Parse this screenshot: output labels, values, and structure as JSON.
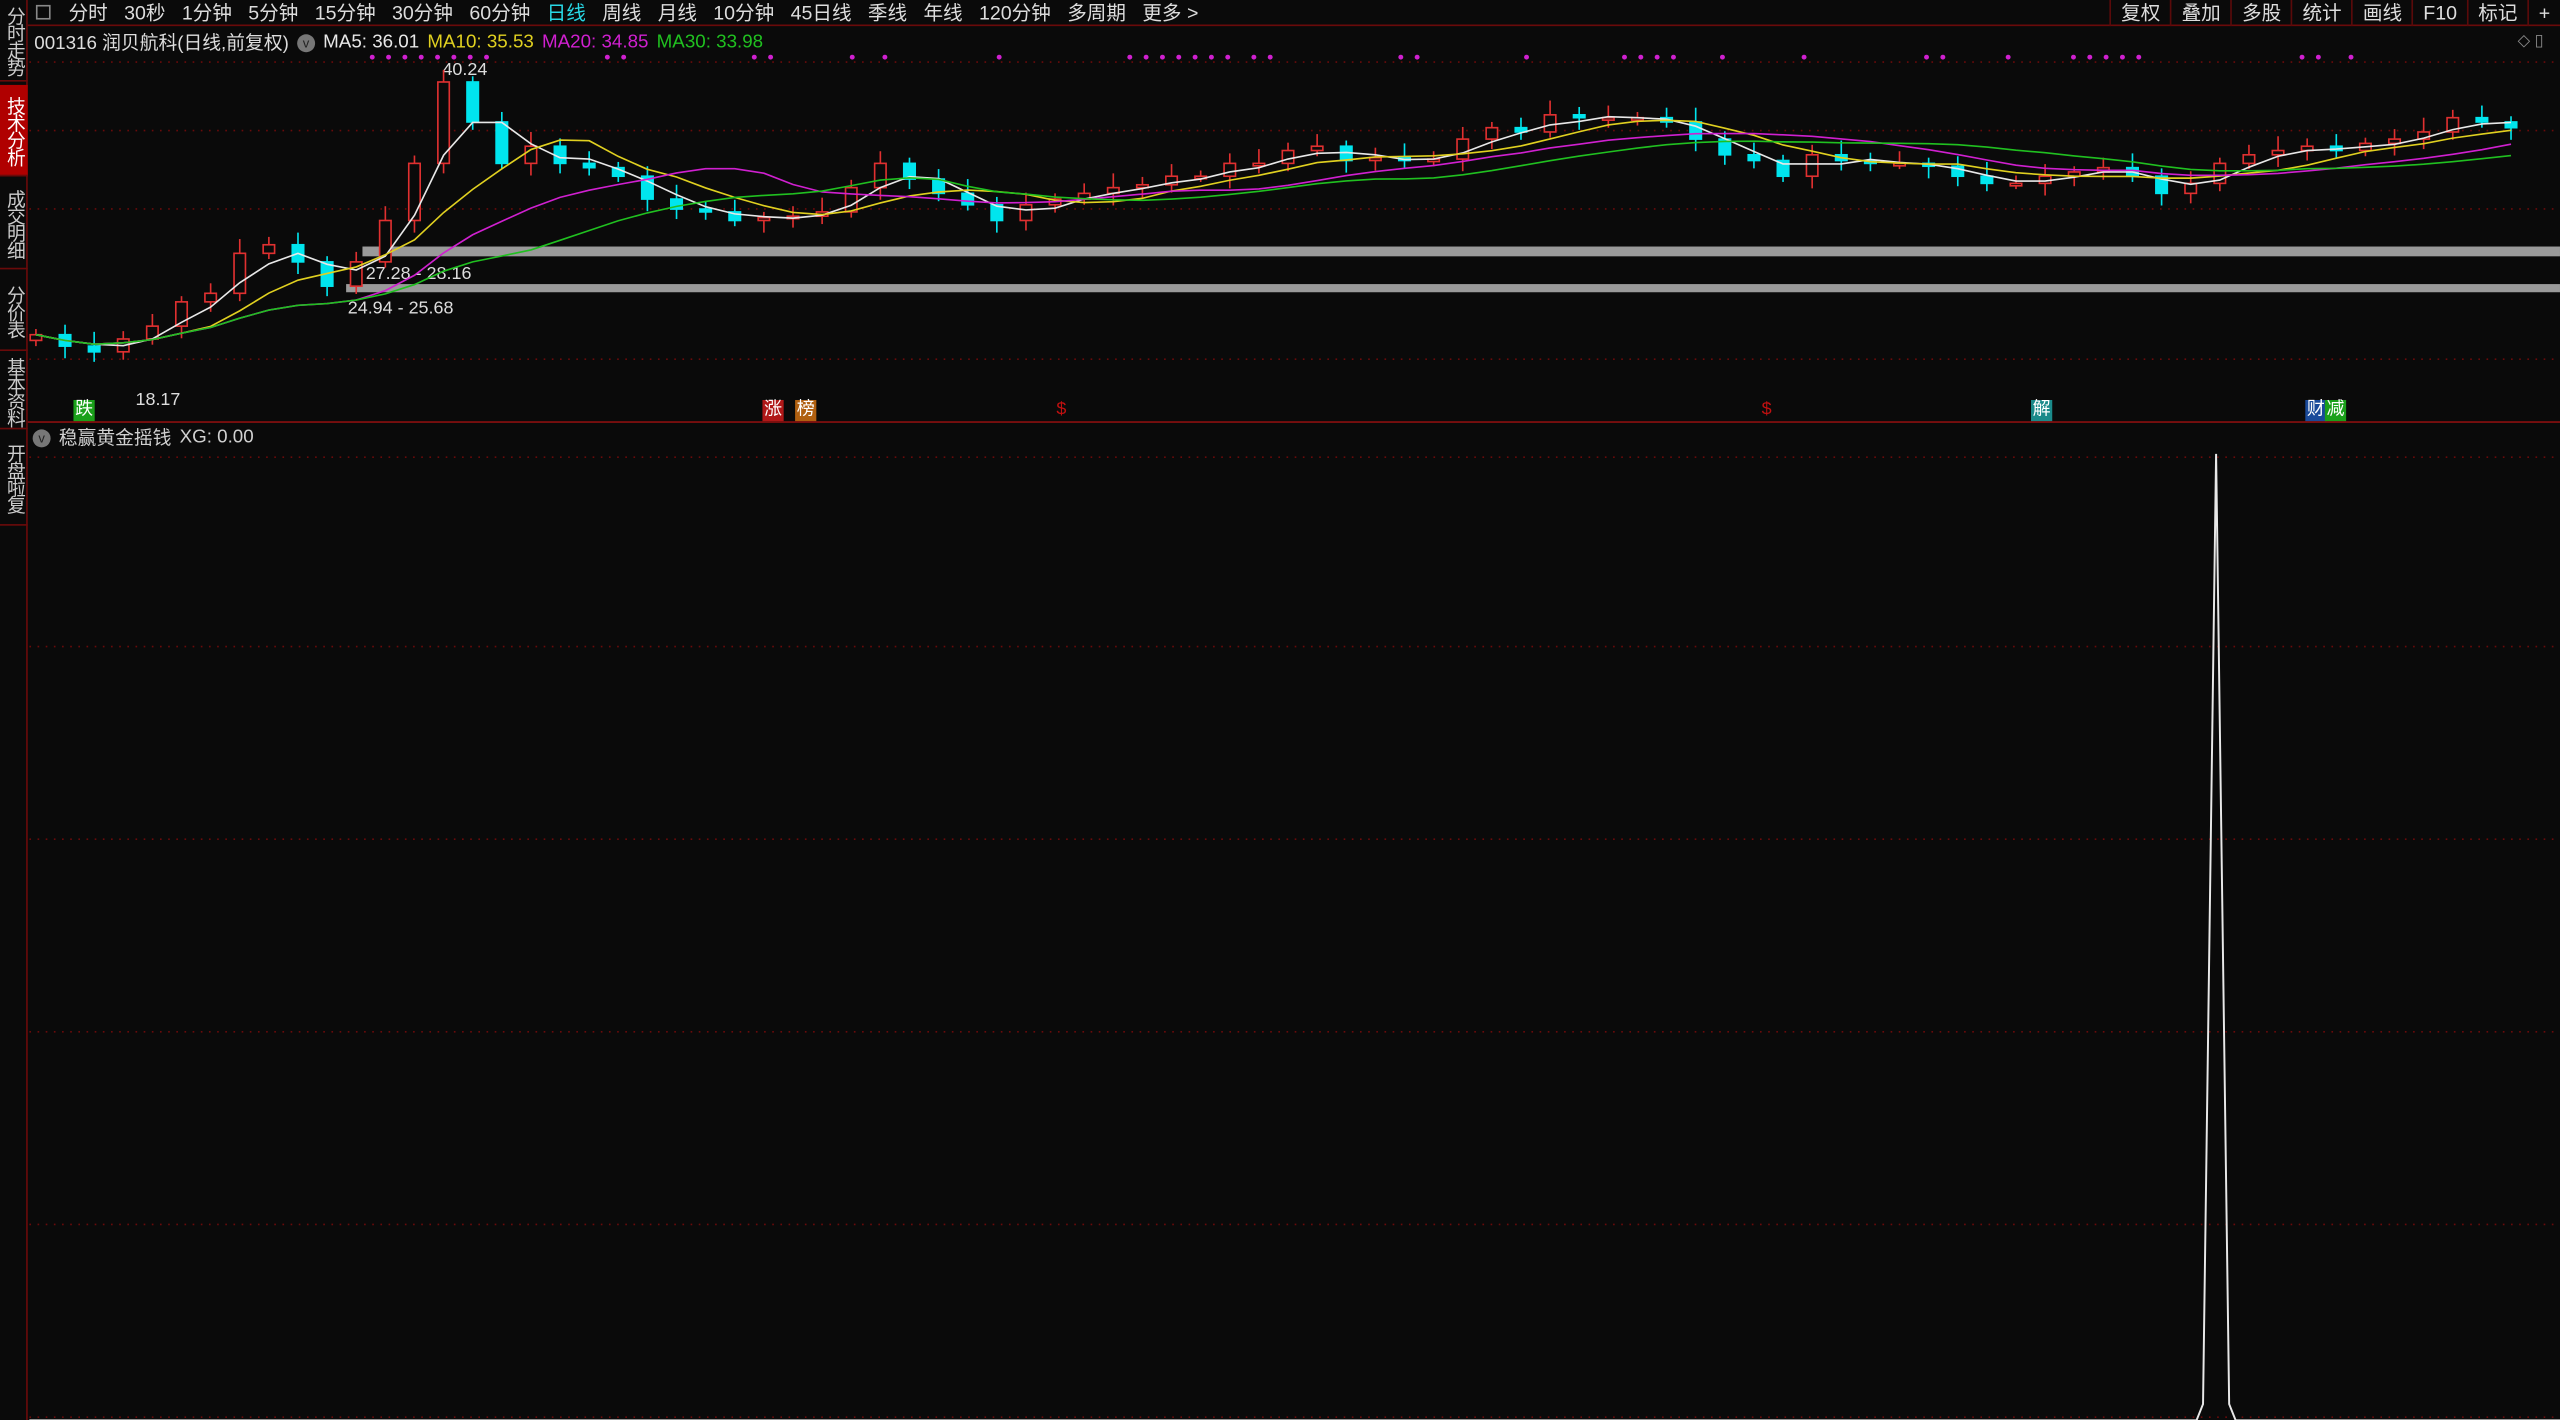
{
  "sidebar": {
    "tabs": [
      {
        "label": "分时走势",
        "active": false
      },
      {
        "label": "技术分析",
        "active": true
      },
      {
        "label": "成交明细",
        "active": false
      },
      {
        "label": "分价表",
        "active": false
      },
      {
        "label": "基本资料",
        "active": false
      },
      {
        "label": "开盘啦复",
        "active": false
      }
    ]
  },
  "toolbar": {
    "periods": [
      "分时",
      "30秒",
      "1分钟",
      "5分钟",
      "15分钟",
      "30分钟",
      "60分钟",
      "日线",
      "周线",
      "月线",
      "10分钟",
      "45日线",
      "季线",
      "年线",
      "120分钟",
      "多周期",
      "更多 >"
    ],
    "active_period": "日线",
    "right": [
      "复权",
      "叠加",
      "多股",
      "统计",
      "画线",
      "F10",
      "标记",
      "+"
    ]
  },
  "info": {
    "stock": "001316 润贝航科(日线,前复权)",
    "ma5": "MA5: 36.01",
    "ma10": "MA10: 35.53",
    "ma20": "MA20: 34.85",
    "ma30": "MA30: 33.98"
  },
  "colors": {
    "up": "#e03030",
    "down": "#00e5ee",
    "ma5": "#e8e8e8",
    "ma10": "#e0d020",
    "ma20": "#d020d0",
    "ma30": "#20c020",
    "grid": "#6a0a0a"
  },
  "annotations": {
    "high": "40.24",
    "low": "18.17",
    "zone1": "27.28 - 28.16",
    "zone2": "24.94 - 25.68"
  },
  "markers": [
    {
      "text": "跌",
      "color": "#1aa01a"
    },
    {
      "text": "涨",
      "color": "#b01818"
    },
    {
      "text": "榜",
      "color": "#b06010"
    },
    {
      "text": "$",
      "color": "#c01010"
    },
    {
      "text": "$",
      "color": "#c01010"
    },
    {
      "text": "解",
      "color": "#1a8a8a"
    },
    {
      "text": "财",
      "color": "#1a4a9a"
    },
    {
      "text": "减",
      "color": "#1aa01a"
    }
  ],
  "indicator": {
    "name": "稳赢黄金摇钱",
    "xg": "XG: 0.00"
  },
  "chart_data": {
    "type": "candlestick",
    "closes": [
      21.6,
      20.8,
      20.4,
      21.3,
      22.2,
      23.9,
      24.5,
      27.3,
      27.9,
      26.7,
      25.0,
      26.7,
      29.6,
      33.6,
      39.3,
      36.5,
      33.6,
      34.8,
      33.6,
      33.3,
      32.7,
      31.1,
      30.4,
      30.2,
      29.6,
      29.8,
      29.9,
      30.2,
      31.9,
      33.6,
      32.5,
      31.5,
      30.7,
      29.6,
      30.7,
      31.1,
      31.5,
      31.9,
      32.1,
      32.7,
      32.7,
      33.6,
      33.6,
      34.5,
      34.8,
      33.8,
      34.0,
      33.8,
      33.9,
      35.3,
      36.1,
      35.8,
      37.0,
      36.8,
      36.8,
      36.8,
      36.5,
      35.3,
      34.2,
      33.8,
      32.7,
      34.2,
      33.8,
      33.6,
      33.6,
      33.4,
      32.7,
      32.2,
      32.2,
      32.7,
      33.0,
      33.3,
      32.7,
      31.5,
      32.2,
      33.6,
      34.2,
      34.5,
      34.8,
      34.5,
      35.0,
      35.3,
      35.8,
      36.8,
      36.5,
      36.1
    ],
    "high": 40.24,
    "low": 18.17,
    "zones": [
      [
        27.28,
        28.16
      ],
      [
        24.94,
        25.68
      ]
    ],
    "indicator_xg_spike_position": 0.88
  }
}
